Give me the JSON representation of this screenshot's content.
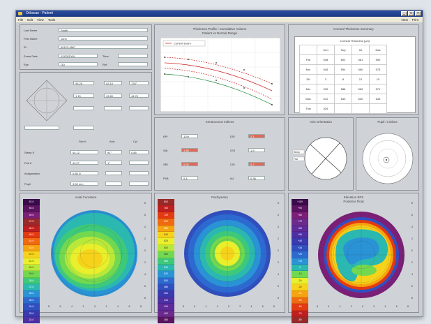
{
  "window": {
    "title": "Orbscan - Patient",
    "buttons": [
      "_",
      "□",
      "×"
    ]
  },
  "menu": {
    "items": [
      "File",
      "Edit",
      "View",
      "Tools"
    ],
    "right_items": [
      "Next",
      "Print"
    ]
  },
  "patient": {
    "rows": [
      {
        "label": "Last Name",
        "value": "Smith"
      },
      {
        "label": "First Name",
        "value": "John"
      },
      {
        "label": "ID",
        "value": "00123-4567"
      },
      {
        "label": "Exam Date",
        "value": "12/03/2004"
      },
      {
        "label": "Eye",
        "value": "OD"
      }
    ],
    "side_labels": [
      "Time",
      "Ref"
    ]
  },
  "keratometry": {
    "fields": [
      "43.25",
      "42.10",
      "176°",
      "1.15",
      "43.80",
      "44.20"
    ],
    "col_headers": [
      "Sim K",
      "Axis",
      "Cyl"
    ],
    "row_labels": [
      "Steep K",
      "Flat K",
      "Astigmatism",
      "Pupil"
    ],
    "values": [
      "44.12",
      "91°",
      "0.85",
      "43.27",
      "1°",
      "",
      "0.85 D",
      "",
      "",
      "3.82 mm",
      "",
      ""
    ]
  },
  "graph": {
    "title": "Thickness Profile / Cumulative Volume",
    "subtitle": "Patient vs Normal Range",
    "legend": "Current Exam"
  },
  "thickness_table": {
    "title": "Corneal Thickness Summary",
    "header_title": "Corneal Thickness (µm)",
    "col_headers": [
      "",
      "Cen",
      "Sup",
      "Inf",
      "Nas"
    ],
    "rows": [
      [
        "Pat",
        "548",
        "602",
        "581",
        "590"
      ],
      [
        "Nor",
        "545",
        "594",
        "560",
        "575"
      ],
      [
        "Dif",
        "3",
        "8",
        "21",
        "15"
      ],
      [
        "Min",
        "532",
        "588",
        "569",
        "571"
      ],
      [
        "Max",
        "612",
        "640",
        "630",
        "633"
      ],
      [
        "Thin",
        "529",
        "",
        "",
        ""
      ]
    ]
  },
  "indices": {
    "title": "Keratoconus Indices",
    "left": [
      {
        "label": "KPI",
        "value": "12%"
      },
      {
        "label": "SAI",
        "value": "1.85"
      },
      {
        "label": "SRI",
        "value": "0.92"
      },
      {
        "label": "PVA",
        "value": "0.4"
      }
    ],
    "right": [
      {
        "label": "DSI",
        "value": "2.1"
      },
      {
        "label": "OSI",
        "value": "1.9"
      },
      {
        "label": "CSI",
        "value": "0.7"
      },
      {
        "label": "IAI",
        "value": "0.38"
      }
    ]
  },
  "axis_panel": {
    "title": "Axis Orientation",
    "labels": [
      "Steep",
      "Flat"
    ]
  },
  "pupil_panel": {
    "title": "Pupil / Limbus"
  },
  "maps": [
    {
      "title": "Axial Curvature",
      "subtitle": "",
      "scale": [
        "52.0",
        "50.5",
        "49.0",
        "47.5",
        "46.0",
        "45.0",
        "44.0",
        "43.0",
        "42.0",
        "41.0",
        "40.0",
        "39.0",
        "38.0",
        "37.0",
        "36.0",
        "35.0",
        "34.0",
        "33.0",
        "32.0",
        "31.0",
        "30.0"
      ],
      "unit": "D",
      "xticks": [
        "8",
        "6",
        "4",
        "2",
        "0",
        "2",
        "4",
        "6",
        "8"
      ],
      "yticks": [
        "8",
        "6",
        "4",
        "2",
        "0",
        "2",
        "4",
        "6",
        "8"
      ]
    },
    {
      "title": "Pachymetry",
      "subtitle": "",
      "scale": [
        "800",
        "760",
        "720",
        "690",
        "660",
        "640",
        "620",
        "600",
        "580",
        "560",
        "540",
        "520",
        "500",
        "480",
        "460",
        "440",
        "420",
        "400",
        "380",
        "360",
        "340"
      ],
      "unit": "µm",
      "xticks": [
        "8",
        "6",
        "4",
        "2",
        "0",
        "2",
        "4",
        "6",
        "8"
      ],
      "yticks": [
        "8",
        "6",
        "4",
        "2",
        "0",
        "2",
        "4",
        "6",
        "8"
      ]
    },
    {
      "title": "Elevation BFS",
      "subtitle": "Posterior Float",
      "scale": [
        "+100",
        "+90",
        "+80",
        "+70",
        "+60",
        "+50",
        "+40",
        "+30",
        "+20",
        "+10",
        "0",
        "-10",
        "-20",
        "-30",
        "-40",
        "-50",
        "-60",
        "-70",
        "-80",
        "-90",
        "-100"
      ],
      "unit": "µm",
      "xticks": [
        "8",
        "6",
        "4",
        "2",
        "0",
        "2",
        "4",
        "6",
        "8"
      ],
      "yticks": [
        "8",
        "6",
        "4",
        "2",
        "0",
        "2",
        "4",
        "6",
        "8"
      ]
    }
  ],
  "colors": {
    "scale_axial": [
      "#3a0a4a",
      "#5a1460",
      "#7c1f78",
      "#9a2a2a",
      "#c01f1f",
      "#e33a12",
      "#f06a10",
      "#f5a30f",
      "#f6d31a",
      "#e9ef2a",
      "#b9e83a",
      "#72d84f",
      "#3ec97a",
      "#2bb8b0",
      "#2a93d6",
      "#2d6ad0",
      "#3050c0",
      "#3a3ab0",
      "#4e2fa4",
      "#5f2a9a",
      "#6b2a8c"
    ],
    "accent": "#1a3680"
  }
}
